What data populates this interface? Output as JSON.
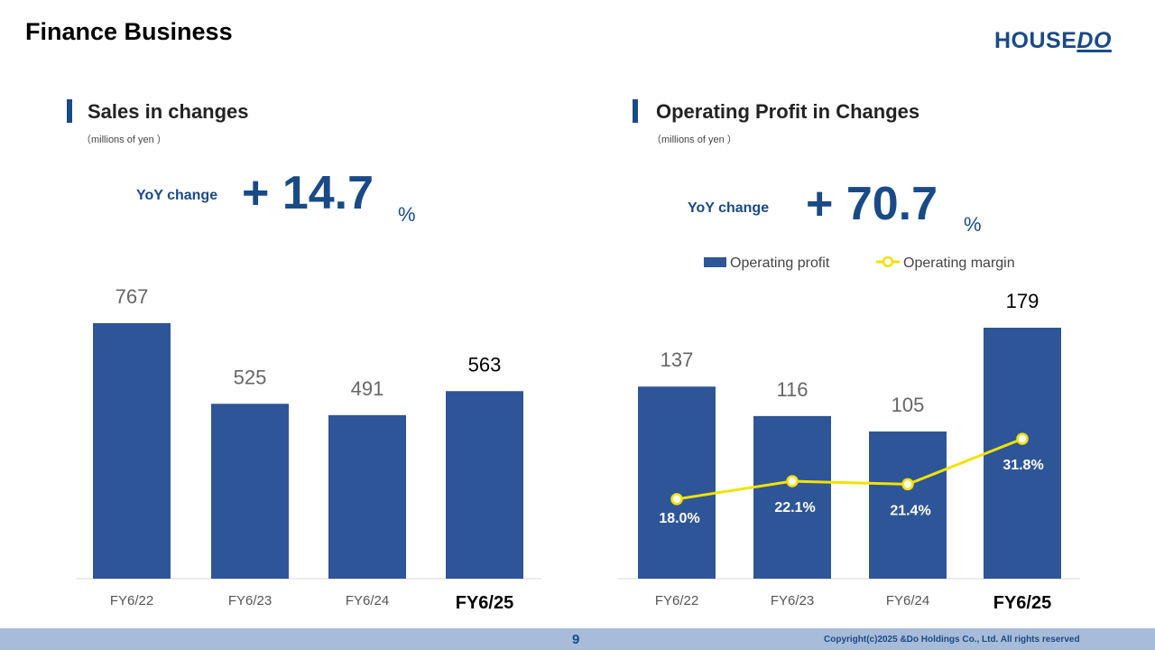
{
  "title": "Finance Business",
  "logo": {
    "part1": "HOUSE",
    "part2": "DO"
  },
  "footer": {
    "page": "9",
    "copyright": "Copyright(c)2025 &Do Holdings Co., Ltd. All rights reserved"
  },
  "colors": {
    "bar": "#2e5597",
    "line": "#f2e200",
    "accent": "#1a4a86"
  },
  "left": {
    "title": "Sales in changes",
    "unit": "（millions of yen ）",
    "yoy_label": "YoY change",
    "yoy_value": "+ 14.7",
    "yoy_pct": "%"
  },
  "right": {
    "title": "Operating Profit in Changes",
    "unit": "（millions of yen ）",
    "yoy_label": "YoY change",
    "yoy_value": "+ 70.7",
    "yoy_pct": "%"
  },
  "chart_data": [
    {
      "type": "bar",
      "title": "Sales in changes",
      "categories": [
        "FY6/22",
        "FY6/23",
        "FY6/24",
        "FY6/25"
      ],
      "values": [
        767,
        525,
        491,
        563
      ],
      "ylabel": "millions of yen",
      "highlight": "FY6/25"
    },
    {
      "type": "bar+line",
      "title": "Operating Profit in Changes",
      "categories": [
        "FY6/22",
        "FY6/23",
        "FY6/24",
        "FY6/25"
      ],
      "series": [
        {
          "name": "Operating profit",
          "type": "bar",
          "values": [
            137,
            116,
            105,
            179
          ]
        },
        {
          "name": "Operating margin",
          "type": "line",
          "values": [
            18.0,
            22.1,
            21.4,
            31.8
          ],
          "labels": [
            "18.0%",
            "22.1%",
            "21.4%",
            "31.8%"
          ]
        }
      ],
      "legend": "top",
      "highlight": "FY6/25"
    }
  ]
}
